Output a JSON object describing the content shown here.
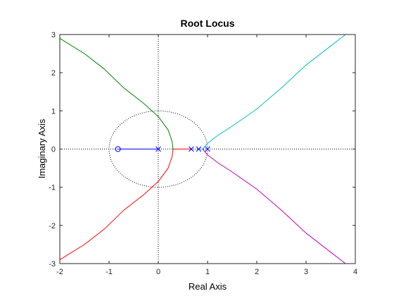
{
  "chart_data": {
    "type": "line",
    "title": "Root Locus",
    "xlabel": "Real Axis",
    "ylabel": "Imaginary Axis",
    "xlim": [
      -2,
      4
    ],
    "ylim": [
      -3,
      3
    ],
    "xticks": [
      "-2",
      "-1",
      "0",
      "1",
      "2",
      "3",
      "4"
    ],
    "yticks": [
      "-3",
      "-2",
      "-1",
      "0",
      "1",
      "2",
      "3"
    ],
    "unit_circle": true,
    "grid": false,
    "zeros": [
      {
        "x": -0.82,
        "y": 0
      }
    ],
    "poles": [
      {
        "x": 0,
        "y": 0
      },
      {
        "x": 0.67,
        "y": 0
      },
      {
        "x": 0.82,
        "y": 0
      },
      {
        "x": 1.0,
        "y": 0
      }
    ],
    "series": [
      {
        "color": "#0000ff",
        "points": [
          [
            0,
            0
          ],
          [
            -0.82,
            0
          ]
        ]
      },
      {
        "color": "#ff0000",
        "points": [
          [
            0.67,
            0
          ],
          [
            0.3,
            0
          ]
        ]
      },
      {
        "color": "#008000",
        "points": [
          [
            0.3,
            0
          ],
          [
            0.28,
            0.2
          ],
          [
            0.2,
            0.5
          ],
          [
            0,
            0.85
          ],
          [
            -0.3,
            1.2
          ],
          [
            -0.7,
            1.6
          ],
          [
            -1.1,
            2.1
          ],
          [
            -1.5,
            2.5
          ],
          [
            -2.0,
            2.9
          ]
        ]
      },
      {
        "color": "#ff0000",
        "points": [
          [
            0.3,
            0
          ],
          [
            0.28,
            -0.2
          ],
          [
            0.2,
            -0.5
          ],
          [
            0,
            -0.85
          ],
          [
            -0.3,
            -1.2
          ],
          [
            -0.7,
            -1.6
          ],
          [
            -1.1,
            -2.1
          ],
          [
            -1.5,
            -2.5
          ],
          [
            -2.0,
            -2.9
          ]
        ]
      },
      {
        "color": "#00bfbf",
        "points": [
          [
            0.82,
            0
          ],
          [
            0.9,
            0
          ]
        ]
      },
      {
        "color": "#00bfbf",
        "points": [
          [
            0.9,
            0
          ],
          [
            1.0,
            0.15
          ],
          [
            1.2,
            0.35
          ],
          [
            1.5,
            0.6
          ],
          [
            2.0,
            1.05
          ],
          [
            2.5,
            1.6
          ],
          [
            3.0,
            2.2
          ],
          [
            3.5,
            2.7
          ],
          [
            3.8,
            3.0
          ]
        ]
      },
      {
        "color": "#bf00bf",
        "points": [
          [
            0.9,
            0
          ],
          [
            1.0,
            -0.15
          ],
          [
            1.2,
            -0.35
          ],
          [
            1.5,
            -0.6
          ],
          [
            2.0,
            -1.05
          ],
          [
            2.5,
            -1.6
          ],
          [
            3.0,
            -2.2
          ],
          [
            3.5,
            -2.7
          ],
          [
            3.8,
            -3.0
          ]
        ]
      }
    ]
  }
}
